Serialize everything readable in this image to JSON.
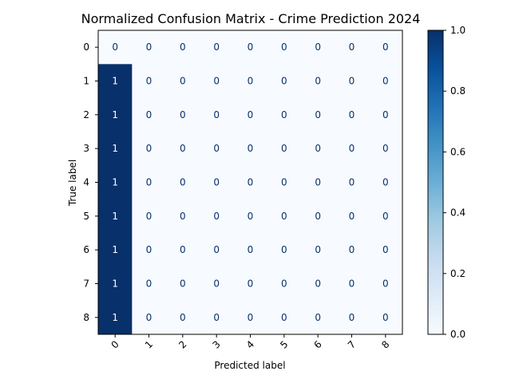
{
  "chart_data": {
    "type": "heatmap",
    "title": "Normalized Confusion Matrix - Crime Prediction 2024",
    "xlabel": "Predicted label",
    "ylabel": "True label",
    "x_categories": [
      "0",
      "1",
      "2",
      "3",
      "4",
      "5",
      "6",
      "7",
      "8"
    ],
    "y_categories": [
      "0",
      "1",
      "2",
      "3",
      "4",
      "5",
      "6",
      "7",
      "8"
    ],
    "matrix": [
      [
        0,
        0,
        0,
        0,
        0,
        0,
        0,
        0,
        0
      ],
      [
        1,
        0,
        0,
        0,
        0,
        0,
        0,
        0,
        0
      ],
      [
        1,
        0,
        0,
        0,
        0,
        0,
        0,
        0,
        0
      ],
      [
        1,
        0,
        0,
        0,
        0,
        0,
        0,
        0,
        0
      ],
      [
        1,
        0,
        0,
        0,
        0,
        0,
        0,
        0,
        0
      ],
      [
        1,
        0,
        0,
        0,
        0,
        0,
        0,
        0,
        0
      ],
      [
        1,
        0,
        0,
        0,
        0,
        0,
        0,
        0,
        0
      ],
      [
        1,
        0,
        0,
        0,
        0,
        0,
        0,
        0,
        0
      ],
      [
        1,
        0,
        0,
        0,
        0,
        0,
        0,
        0,
        0
      ]
    ],
    "value_range": [
      0,
      1
    ],
    "x_tick_rotation": "45 degrees",
    "grid": false,
    "colorbar": {
      "colormap": "Blues",
      "ticks": [
        "0.0",
        "0.2",
        "0.4",
        "0.6",
        "0.8",
        "1.0"
      ],
      "range": [
        0,
        1
      ],
      "placement": "right"
    },
    "colors": {
      "low": "#f7fbff",
      "high": "#08306b",
      "text_on_dark": "#ffffff",
      "text_on_light": "#08306b"
    }
  }
}
